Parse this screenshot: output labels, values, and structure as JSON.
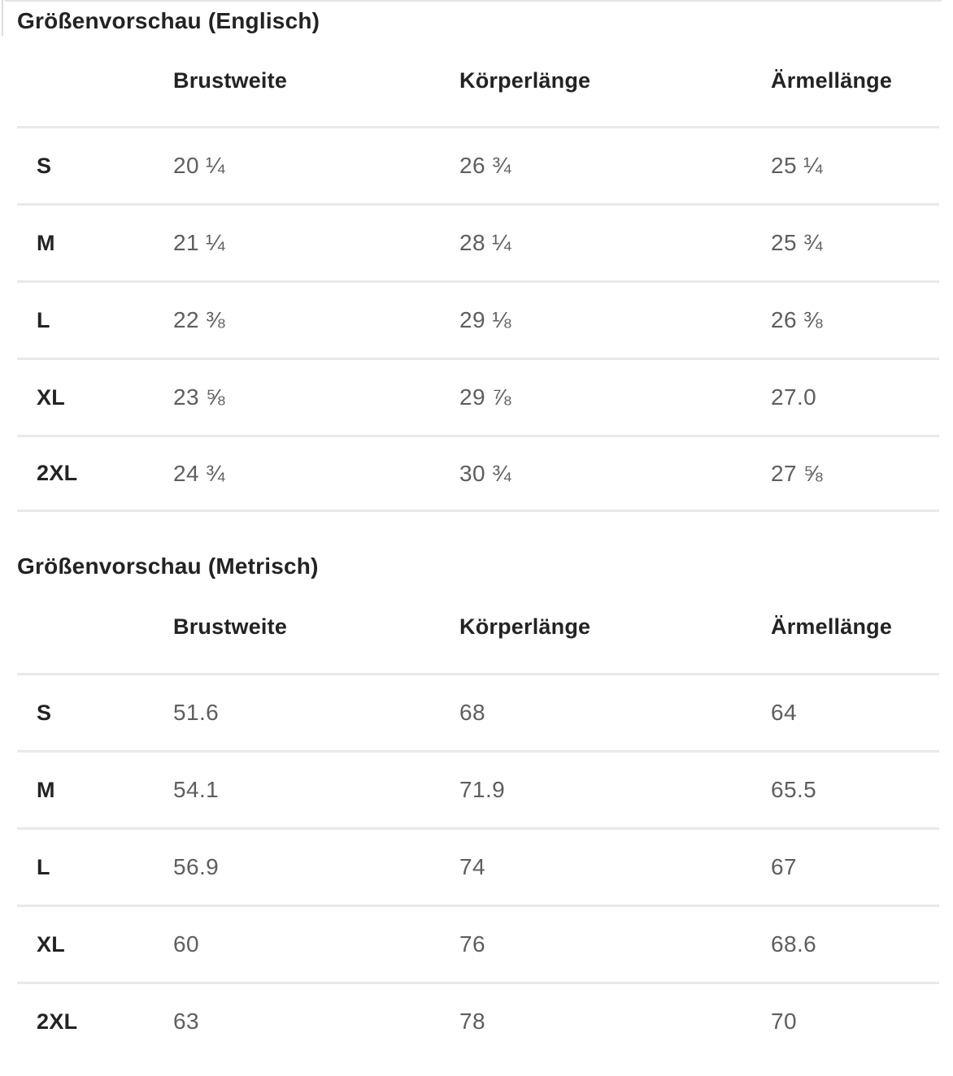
{
  "colors": {
    "heading_text": "#232323",
    "value_text": "#5e5e5e",
    "divider": "#e9e9e9",
    "background": "#ffffff"
  },
  "tables": [
    {
      "title": "Größenvorschau (Englisch)",
      "columns": [
        "Brustweite",
        "Körperlänge",
        "Ärmellänge"
      ],
      "rows": [
        {
          "size": "S",
          "values": [
            "20 ¼",
            "26 ¾",
            "25 ¼"
          ]
        },
        {
          "size": "M",
          "values": [
            "21 ¼",
            "28 ¼",
            "25 ¾"
          ]
        },
        {
          "size": "L",
          "values": [
            "22 ⅜",
            "29 ⅛",
            "26 ⅜"
          ]
        },
        {
          "size": "XL",
          "values": [
            "23 ⅝",
            "29 ⅞",
            "27.0"
          ]
        },
        {
          "size": "2XL",
          "values": [
            "24 ¾",
            "30 ¾",
            "27 ⅝"
          ]
        }
      ]
    },
    {
      "title": "Größenvorschau (Metrisch)",
      "columns": [
        "Brustweite",
        "Körperlänge",
        "Ärmellänge"
      ],
      "rows": [
        {
          "size": "S",
          "values": [
            "51.6",
            "68",
            "64"
          ]
        },
        {
          "size": "M",
          "values": [
            "54.1",
            "71.9",
            "65.5"
          ]
        },
        {
          "size": "L",
          "values": [
            "56.9",
            "74",
            "67"
          ]
        },
        {
          "size": "XL",
          "values": [
            "60",
            "76",
            "68.6"
          ]
        },
        {
          "size": "2XL",
          "values": [
            "63",
            "78",
            "70"
          ]
        }
      ]
    }
  ]
}
